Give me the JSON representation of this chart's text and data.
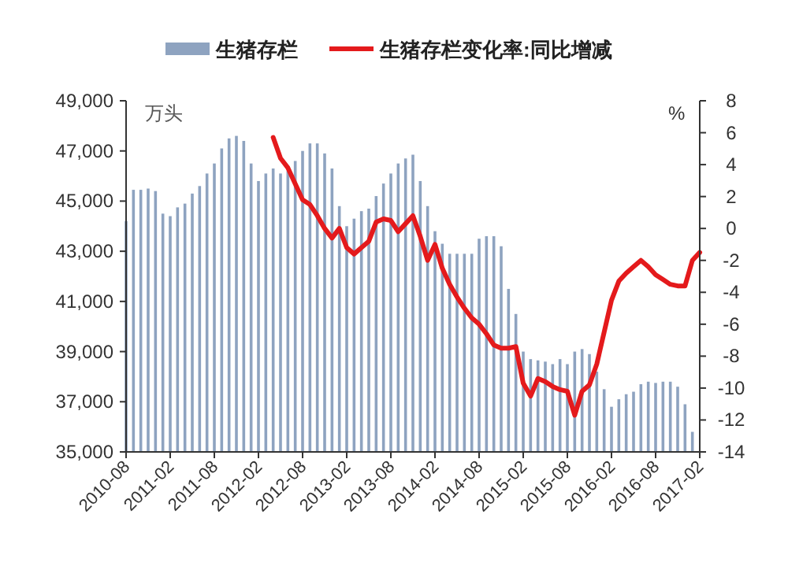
{
  "chart_data": {
    "type": "bar",
    "categories": [
      "2010-08",
      null,
      null,
      null,
      null,
      null,
      "2011-02",
      null,
      null,
      null,
      null,
      null,
      "2011-08",
      null,
      null,
      null,
      null,
      null,
      "2012-02",
      null,
      null,
      null,
      null,
      null,
      "2012-08",
      null,
      null,
      null,
      null,
      null,
      "2013-02",
      null,
      null,
      null,
      null,
      null,
      "2013-08",
      null,
      null,
      null,
      null,
      null,
      "2014-02",
      null,
      null,
      null,
      null,
      null,
      "2014-08",
      null,
      null,
      null,
      null,
      null,
      "2015-02",
      null,
      null,
      null,
      null,
      null,
      "2015-08",
      null,
      null,
      null,
      null,
      null,
      "2016-02",
      null,
      null,
      null,
      null,
      null,
      "2016-08",
      null,
      null,
      null,
      null,
      null,
      "2017-02"
    ],
    "series": [
      {
        "name": "生猪存栏",
        "color": "#8ea3c0",
        "values": [
          44200,
          45450,
          45450,
          45500,
          45400,
          44500,
          44400,
          44750,
          44900,
          45300,
          45600,
          46100,
          46500,
          47100,
          47500,
          47600,
          47400,
          46500,
          45800,
          46100,
          46300,
          46100,
          46200,
          46600,
          47000,
          47300,
          47300,
          46900,
          46300,
          44800,
          44000,
          44300,
          44600,
          44700,
          45200,
          45700,
          46100,
          46500,
          46700,
          46850,
          45800,
          44800,
          43800,
          43300,
          42900,
          42900,
          42900,
          42900,
          43500,
          43600,
          43600,
          43200,
          41500,
          40500,
          39000,
          38700,
          38650,
          38600,
          38500,
          38700,
          38500,
          39000,
          39100,
          38900,
          38200,
          37500,
          36800,
          37100,
          37300,
          37400,
          37700,
          37800,
          37750,
          37800,
          37800,
          37600,
          36900,
          35800,
          null
        ]
      },
      {
        "name": "生猪存栏变化率:同比增减",
        "type": "line",
        "axis": "y2",
        "color": "#e41a1c",
        "values": [
          null,
          null,
          null,
          null,
          null,
          null,
          null,
          null,
          null,
          null,
          null,
          null,
          null,
          null,
          null,
          null,
          null,
          null,
          null,
          null,
          5.7,
          4.4,
          3.8,
          2.8,
          1.8,
          1.5,
          0.8,
          0.0,
          -0.6,
          0.0,
          -1.2,
          -1.6,
          -1.2,
          -0.8,
          0.4,
          0.6,
          0.5,
          -0.2,
          0.3,
          0.8,
          -0.5,
          -2.0,
          -1.0,
          -2.5,
          -3.5,
          -4.3,
          -5.0,
          -5.6,
          -6.0,
          -6.6,
          -7.3,
          -7.5,
          -7.5,
          -7.4,
          -9.7,
          -10.5,
          -9.4,
          -9.6,
          -9.9,
          -10.1,
          -10.2,
          -11.7,
          -10.2,
          -9.8,
          -8.5,
          -6.5,
          -4.5,
          -3.3,
          -2.8,
          -2.4,
          -2.0,
          -2.4,
          -2.9,
          -3.2,
          -3.5,
          -3.6,
          -3.6,
          -2.0,
          -1.5
        ]
      }
    ],
    "ylabel": "万头",
    "y2label": "%",
    "ylim": [
      35000,
      49000
    ],
    "yticks": [
      {
        "value": 35000,
        "label": "35,000"
      },
      {
        "value": 37000,
        "label": "37,000"
      },
      {
        "value": 39000,
        "label": "39,000"
      },
      {
        "value": 41000,
        "label": "41,000"
      },
      {
        "value": 43000,
        "label": "43,000"
      },
      {
        "value": 45000,
        "label": "45,000"
      },
      {
        "value": 47000,
        "label": "47,000"
      },
      {
        "value": 49000,
        "label": "49,000"
      }
    ],
    "y2lim": [
      -14,
      8
    ],
    "y2ticks": [
      -14,
      -12,
      -10,
      -8,
      -6,
      -4,
      -2,
      0,
      2,
      4,
      6,
      8
    ],
    "legend": "top"
  }
}
